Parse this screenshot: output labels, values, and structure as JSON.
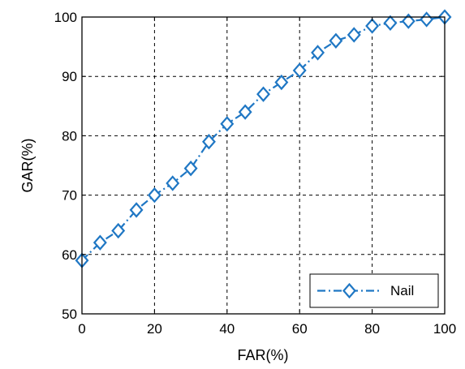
{
  "chart_data": {
    "type": "line",
    "title": "",
    "xlabel": "FAR(%)",
    "ylabel": "GAR(%)",
    "xlim": [
      0,
      100
    ],
    "ylim": [
      50,
      100
    ],
    "x_ticks": [
      0,
      20,
      40,
      60,
      80,
      100
    ],
    "y_ticks": [
      50,
      60,
      70,
      80,
      90,
      100
    ],
    "x_tick_labels": [
      "0",
      "20",
      "40",
      "60",
      "80",
      "100"
    ],
    "y_tick_labels": [
      "50",
      "60",
      "70",
      "80",
      "90",
      "100"
    ],
    "grid": true,
    "legend": "bottom-right",
    "series": [
      {
        "name": "Nail",
        "color": "#1f77c4",
        "marker": "diamond",
        "line_style": "dash-dot",
        "x": [
          0,
          5,
          10,
          15,
          20,
          25,
          30,
          35,
          40,
          45,
          50,
          55,
          60,
          65,
          70,
          75,
          80,
          85,
          90,
          95,
          100
        ],
        "y": [
          59,
          62,
          64,
          67.5,
          70,
          72,
          74.5,
          79,
          82,
          84,
          87,
          89,
          91,
          94,
          96,
          97,
          98.5,
          99,
          99.3,
          99.6,
          100
        ]
      }
    ]
  }
}
